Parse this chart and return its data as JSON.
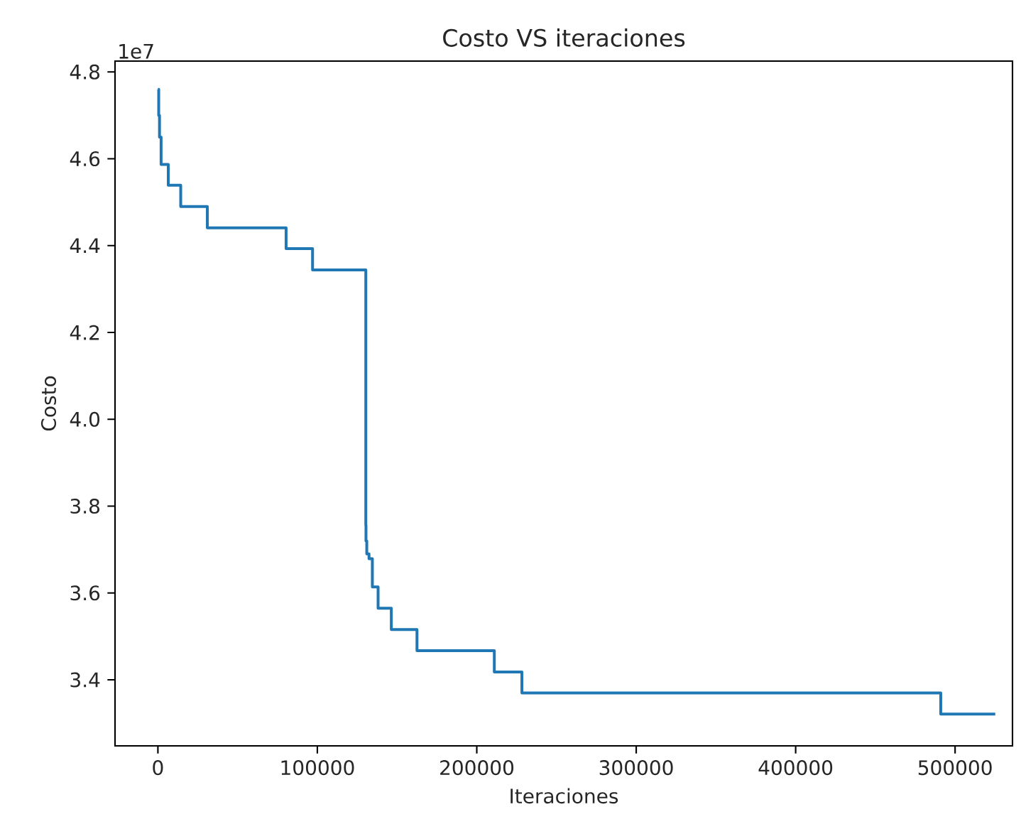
{
  "chart_data": {
    "type": "step",
    "title": "Costo VS iteraciones",
    "xlabel": "Iteraciones",
    "ylabel": "Costo",
    "annotations": [
      "1e7"
    ],
    "x": [
      0,
      500,
      1000,
      2000,
      6500,
      14300,
      31000,
      80400,
      97000,
      130400,
      130500,
      131000,
      132400,
      134500,
      138100,
      146400,
      162500,
      211000,
      228300,
      491000,
      525200
    ],
    "series": [
      {
        "color": "#1f77b4",
        "values": [
          4.76,
          4.7,
          4.65,
          4.587,
          4.539,
          4.49,
          4.441,
          4.393,
          4.344,
          3.756,
          3.72,
          3.69,
          3.679,
          3.614,
          3.565,
          3.516,
          3.467,
          3.418,
          3.37,
          3.321,
          3.321
        ]
      }
    ],
    "xlim": [
      -26900,
      536000
    ],
    "ylim": [
      3.248,
      4.825
    ],
    "xticks": [
      0,
      100000,
      200000,
      300000,
      400000,
      500000
    ],
    "yticks": [
      {
        "value": 3.4,
        "label": "3.4"
      },
      {
        "value": 3.6,
        "label": "3.6"
      },
      {
        "value": 3.8,
        "label": "3.8"
      },
      {
        "value": 4.0,
        "label": "4.0"
      },
      {
        "value": 4.2,
        "label": "4.2"
      },
      {
        "value": 4.4,
        "label": "4.4"
      },
      {
        "value": 4.6,
        "label": "4.6"
      },
      {
        "value": 4.8,
        "label": "4.8"
      }
    ]
  }
}
